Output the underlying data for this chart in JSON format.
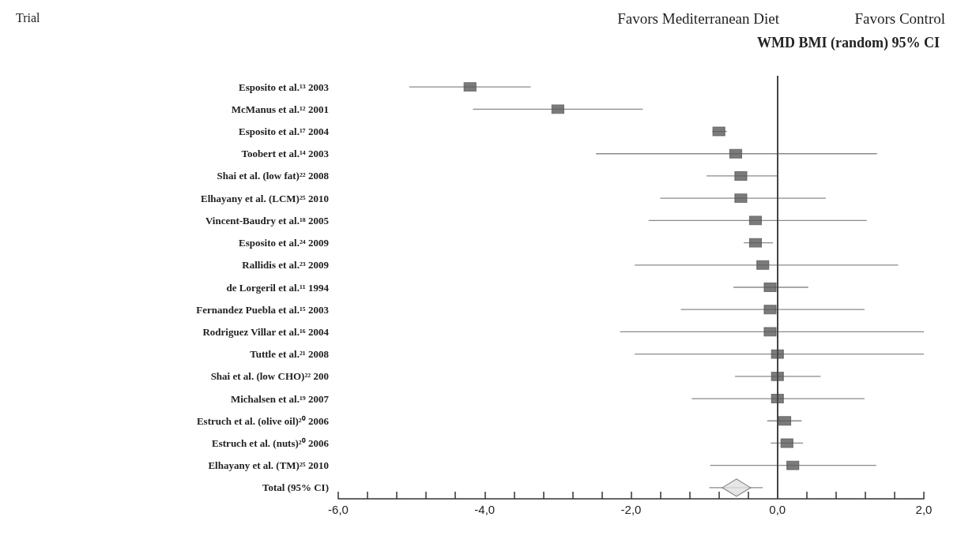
{
  "chart_data": {
    "type": "scatter",
    "orientation": "horizontal",
    "title": "WMD BMI (random) 95% CI",
    "annotations": [
      "Trial",
      "Favors Mediterranean Diet",
      "Favors Control"
    ],
    "categories": [
      "Esposito et al.¹³ 2003",
      "McManus et al.¹² 2001",
      "Esposito et al.¹⁷ 2004",
      "Toobert et al.¹⁴ 2003",
      "Shai et al. (low fat)²² 2008",
      "Elhayany et al. (LCM)²⁵ 2010",
      "Vincent-Baudry et al.¹⁸ 2005",
      "Esposito et al.²⁴ 2009",
      "Rallidis et al.²³ 2009",
      "de Lorgeril et al.¹¹ 1994",
      "Fernandez Puebla et al.¹⁵ 2003",
      "Rodriguez Villar et al.¹⁶ 2004",
      "Tuttle et al.²¹ 2008",
      "Shai et al. (low CHO)²² 200",
      "Michalsen et al.¹⁹ 2007",
      "Estruch et al. (olive oil)²⁰ 2006",
      "Estruch et al. (nuts)²⁰ 2006",
      "Elhayany et al. (TM)²⁵ 2010",
      "Total (95% CI)"
    ],
    "series": [
      {
        "marker": "square",
        "color": "#5a5a5a",
        "values": [
          -4.2,
          -3.0,
          -0.8,
          -0.57,
          -0.5,
          -0.5,
          -0.3,
          -0.3,
          -0.2,
          -0.1,
          -0.1,
          -0.1,
          0.0,
          0.0,
          0.0,
          0.1,
          0.13,
          0.21,
          null
        ],
        "errors": [
          [
            -5.03,
            -3.37
          ],
          [
            -4.16,
            -1.84
          ],
          [
            -0.89,
            -0.69
          ],
          [
            -2.48,
            1.36
          ],
          [
            -0.97,
            0.0
          ],
          [
            -1.6,
            0.66
          ],
          [
            -1.76,
            1.22
          ],
          [
            -0.46,
            -0.06
          ],
          [
            -1.95,
            1.65
          ],
          [
            -0.6,
            0.42
          ],
          [
            -1.32,
            1.19
          ],
          [
            -2.15,
            2.0
          ],
          [
            -1.95,
            2.0
          ],
          [
            -0.58,
            0.59
          ],
          [
            -1.17,
            1.19
          ],
          [
            -0.14,
            0.33
          ],
          [
            -0.09,
            0.35
          ],
          [
            -0.92,
            1.35
          ],
          null
        ]
      },
      {
        "marker": "diamond",
        "color": "#e0e0e0",
        "values": [
          null,
          null,
          null,
          null,
          null,
          null,
          null,
          null,
          null,
          null,
          null,
          null,
          null,
          null,
          null,
          null,
          null,
          null,
          -0.56
        ],
        "errors": [
          null,
          null,
          null,
          null,
          null,
          null,
          null,
          null,
          null,
          null,
          null,
          null,
          null,
          null,
          null,
          null,
          null,
          null,
          [
            -0.93,
            -0.2
          ]
        ]
      }
    ],
    "xlim": [
      -6,
      2
    ],
    "xticks": [
      {
        "value": -6,
        "label": "-6,0"
      },
      {
        "value": -5.6,
        "label": null
      },
      {
        "value": -5.2,
        "label": null
      },
      {
        "value": -4.8,
        "label": null
      },
      {
        "value": -4.4,
        "label": null
      },
      {
        "value": -4,
        "label": "-4,0"
      },
      {
        "value": -3.6,
        "label": null
      },
      {
        "value": -3.2,
        "label": null
      },
      {
        "value": -2.8,
        "label": null
      },
      {
        "value": -2.4,
        "label": null
      },
      {
        "value": -2,
        "label": "-2,0"
      },
      {
        "value": -1.6,
        "label": null
      },
      {
        "value": -1.2,
        "label": null
      },
      {
        "value": -0.8,
        "label": null
      },
      {
        "value": -0.4,
        "label": null
      },
      {
        "value": 0,
        "label": "0,0"
      },
      {
        "value": 0.4,
        "label": null
      },
      {
        "value": 0.8,
        "label": null
      },
      {
        "value": 1.2,
        "label": null
      },
      {
        "value": 1.6,
        "label": null
      },
      {
        "value": 2,
        "label": "2,0"
      }
    ],
    "ref_lines": [
      {
        "axis": "x",
        "value": 0,
        "color": "#444444"
      }
    ],
    "grid": false
  }
}
